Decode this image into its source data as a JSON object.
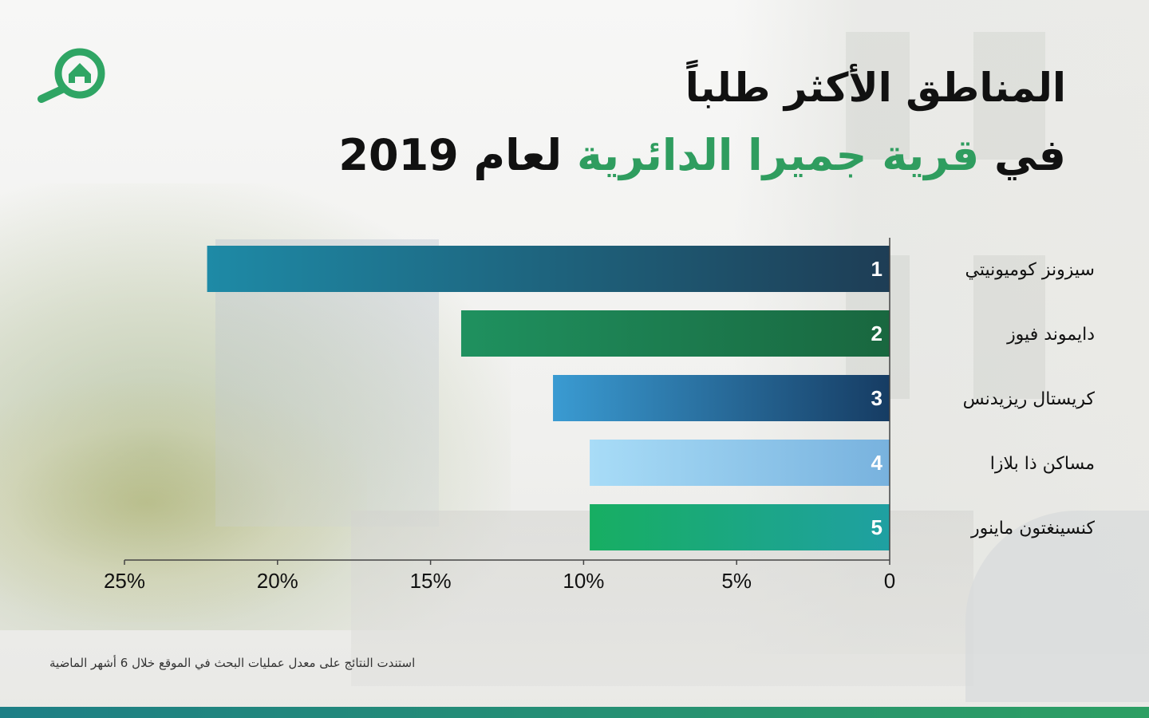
{
  "title_line1": "المناطق الأكثر طلباً",
  "title_line2_prefix": "في",
  "title_line2_highlight": "قرية جميرا الدائرية",
  "title_line2_suffix": "لعام 2019",
  "footnote": "استندت النتائج على معدل عمليات البحث في الموقع خلال 6 أشهر الماضية",
  "colors": {
    "accent_green": "#2f9d5f",
    "bottom_bar_start": "#1e7f86",
    "bottom_bar_end": "#2d9f63"
  },
  "logo_icon": "house-search-icon",
  "chart_data": {
    "type": "bar",
    "orientation": "horizontal",
    "x_direction": "right-to-left",
    "categories": [
      "سيزونز كوميونيتي",
      "دايموند فيوز",
      "كريستال ريزيدنس",
      "مساكن ذا بلازا",
      "كنسينغتون ماينور"
    ],
    "ranks": [
      "1",
      "2",
      "3",
      "4",
      "5"
    ],
    "values": [
      22.3,
      14,
      11,
      9.8,
      9.8
    ],
    "xlim": [
      0,
      25
    ],
    "xticks": [
      0,
      5,
      10,
      15,
      20,
      25
    ],
    "xtick_labels": [
      "0",
      "5%",
      "10%",
      "15%",
      "20%",
      "25%"
    ],
    "grid": false,
    "bar_gradients": [
      [
        "#1e8aa6",
        "#1e3d55"
      ],
      [
        "#1f915f",
        "#19673f"
      ],
      [
        "#3a9bd2",
        "#163c63"
      ],
      [
        "#a8dcf7",
        "#78b2de"
      ],
      [
        "#17ae62",
        "#1fa0a2"
      ]
    ]
  }
}
